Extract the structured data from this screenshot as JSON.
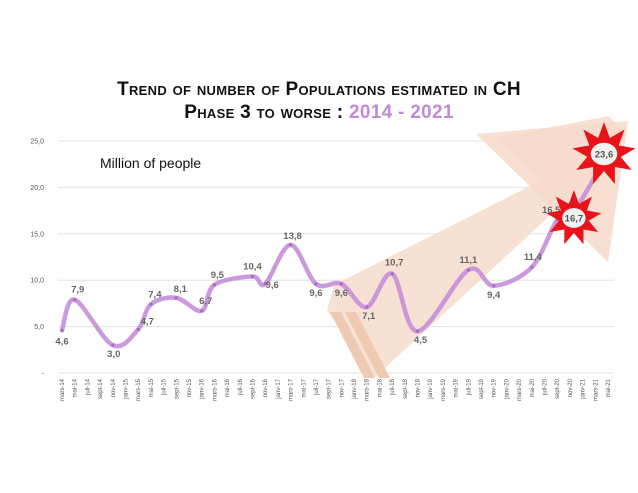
{
  "title": {
    "line1": "Trend of number of Populations estimated in CH",
    "line2_prefix": "Phase 3 to worse :",
    "line2_years": "2014 - 2021"
  },
  "chart_data": {
    "type": "line",
    "unit_note": "Million of people",
    "ylim": [
      0,
      25
    ],
    "y_ticks": [
      "-",
      "5,0",
      "10,0",
      "15,0",
      "20,0",
      "25,0"
    ],
    "y_tick_values": [
      0,
      5,
      10,
      15,
      20,
      25
    ],
    "categories": [
      "mars-14",
      "mai-14",
      "juil-14",
      "sept-14",
      "nov-14",
      "janv-15",
      "mars-15",
      "mai-15",
      "juil-15",
      "sept-15",
      "nov-15",
      "janv-16",
      "mars-16",
      "mai-16",
      "juil-16",
      "sept-16",
      "nov-16",
      "janv-17",
      "mars-17",
      "mai-17",
      "juil-17",
      "sept-17",
      "nov-17",
      "janv-18",
      "mars-18",
      "mai-18",
      "juil-18",
      "sept-18",
      "nov-18",
      "janv-19",
      "mars-19",
      "mai-19",
      "juil-19",
      "sept-19",
      "nov-19",
      "janv-20",
      "mars-20",
      "mai-20",
      "juil-20",
      "sept-20",
      "nov-20",
      "janv-21",
      "mars-21",
      "mai-21"
    ],
    "series": [
      {
        "name": "Million of people",
        "points": [
          {
            "x": 0,
            "value": 4.6,
            "label": "4,6"
          },
          {
            "x": 1,
            "value": 7.9,
            "label": "7,9"
          },
          {
            "x": 4,
            "value": 3.0,
            "label": "3,0"
          },
          {
            "x": 6,
            "value": 4.7,
            "label": "4,7"
          },
          {
            "x": 7,
            "value": 7.4,
            "label": "7,4"
          },
          {
            "x": 9,
            "value": 8.1,
            "label": "8,1"
          },
          {
            "x": 11,
            "value": 6.7,
            "label": "6,7"
          },
          {
            "x": 12,
            "value": 9.5,
            "label": "9,5"
          },
          {
            "x": 15,
            "value": 10.4,
            "label": "10,4"
          },
          {
            "x": 16,
            "value": 9.6,
            "label": "9,6"
          },
          {
            "x": 18,
            "value": 13.8,
            "label": "13,8"
          },
          {
            "x": 20,
            "value": 9.6,
            "label": "9,6"
          },
          {
            "x": 22,
            "value": 9.6,
            "label": "9,6"
          },
          {
            "x": 24,
            "value": 7.1,
            "label": "7,1"
          },
          {
            "x": 26,
            "value": 10.7,
            "label": "10,7"
          },
          {
            "x": 28,
            "value": 4.5,
            "label": "4,5"
          },
          {
            "x": 32,
            "value": 11.1,
            "label": "11,1"
          },
          {
            "x": 34,
            "value": 9.4,
            "label": "9,4"
          },
          {
            "x": 37,
            "value": 11.4,
            "label": "11,4"
          },
          {
            "x": 39,
            "value": 16.5,
            "label": "16,5"
          },
          {
            "x": 40,
            "value": 16.7,
            "label": "16,7"
          },
          {
            "x": 43,
            "value": 23.6,
            "label": "23,6"
          }
        ]
      }
    ],
    "highlights": [
      {
        "label": "16,7",
        "value": 16.7
      },
      {
        "label": "23,6",
        "value": 23.6
      }
    ],
    "annotation": "upward trend arrow 2018-2021"
  },
  "colors": {
    "line": "#c58fd9",
    "arrow_fill": "#f6dccd",
    "burst_red": "#e8141a",
    "years_accent": "#c08bd6",
    "gridline": "#e3e3e3"
  }
}
